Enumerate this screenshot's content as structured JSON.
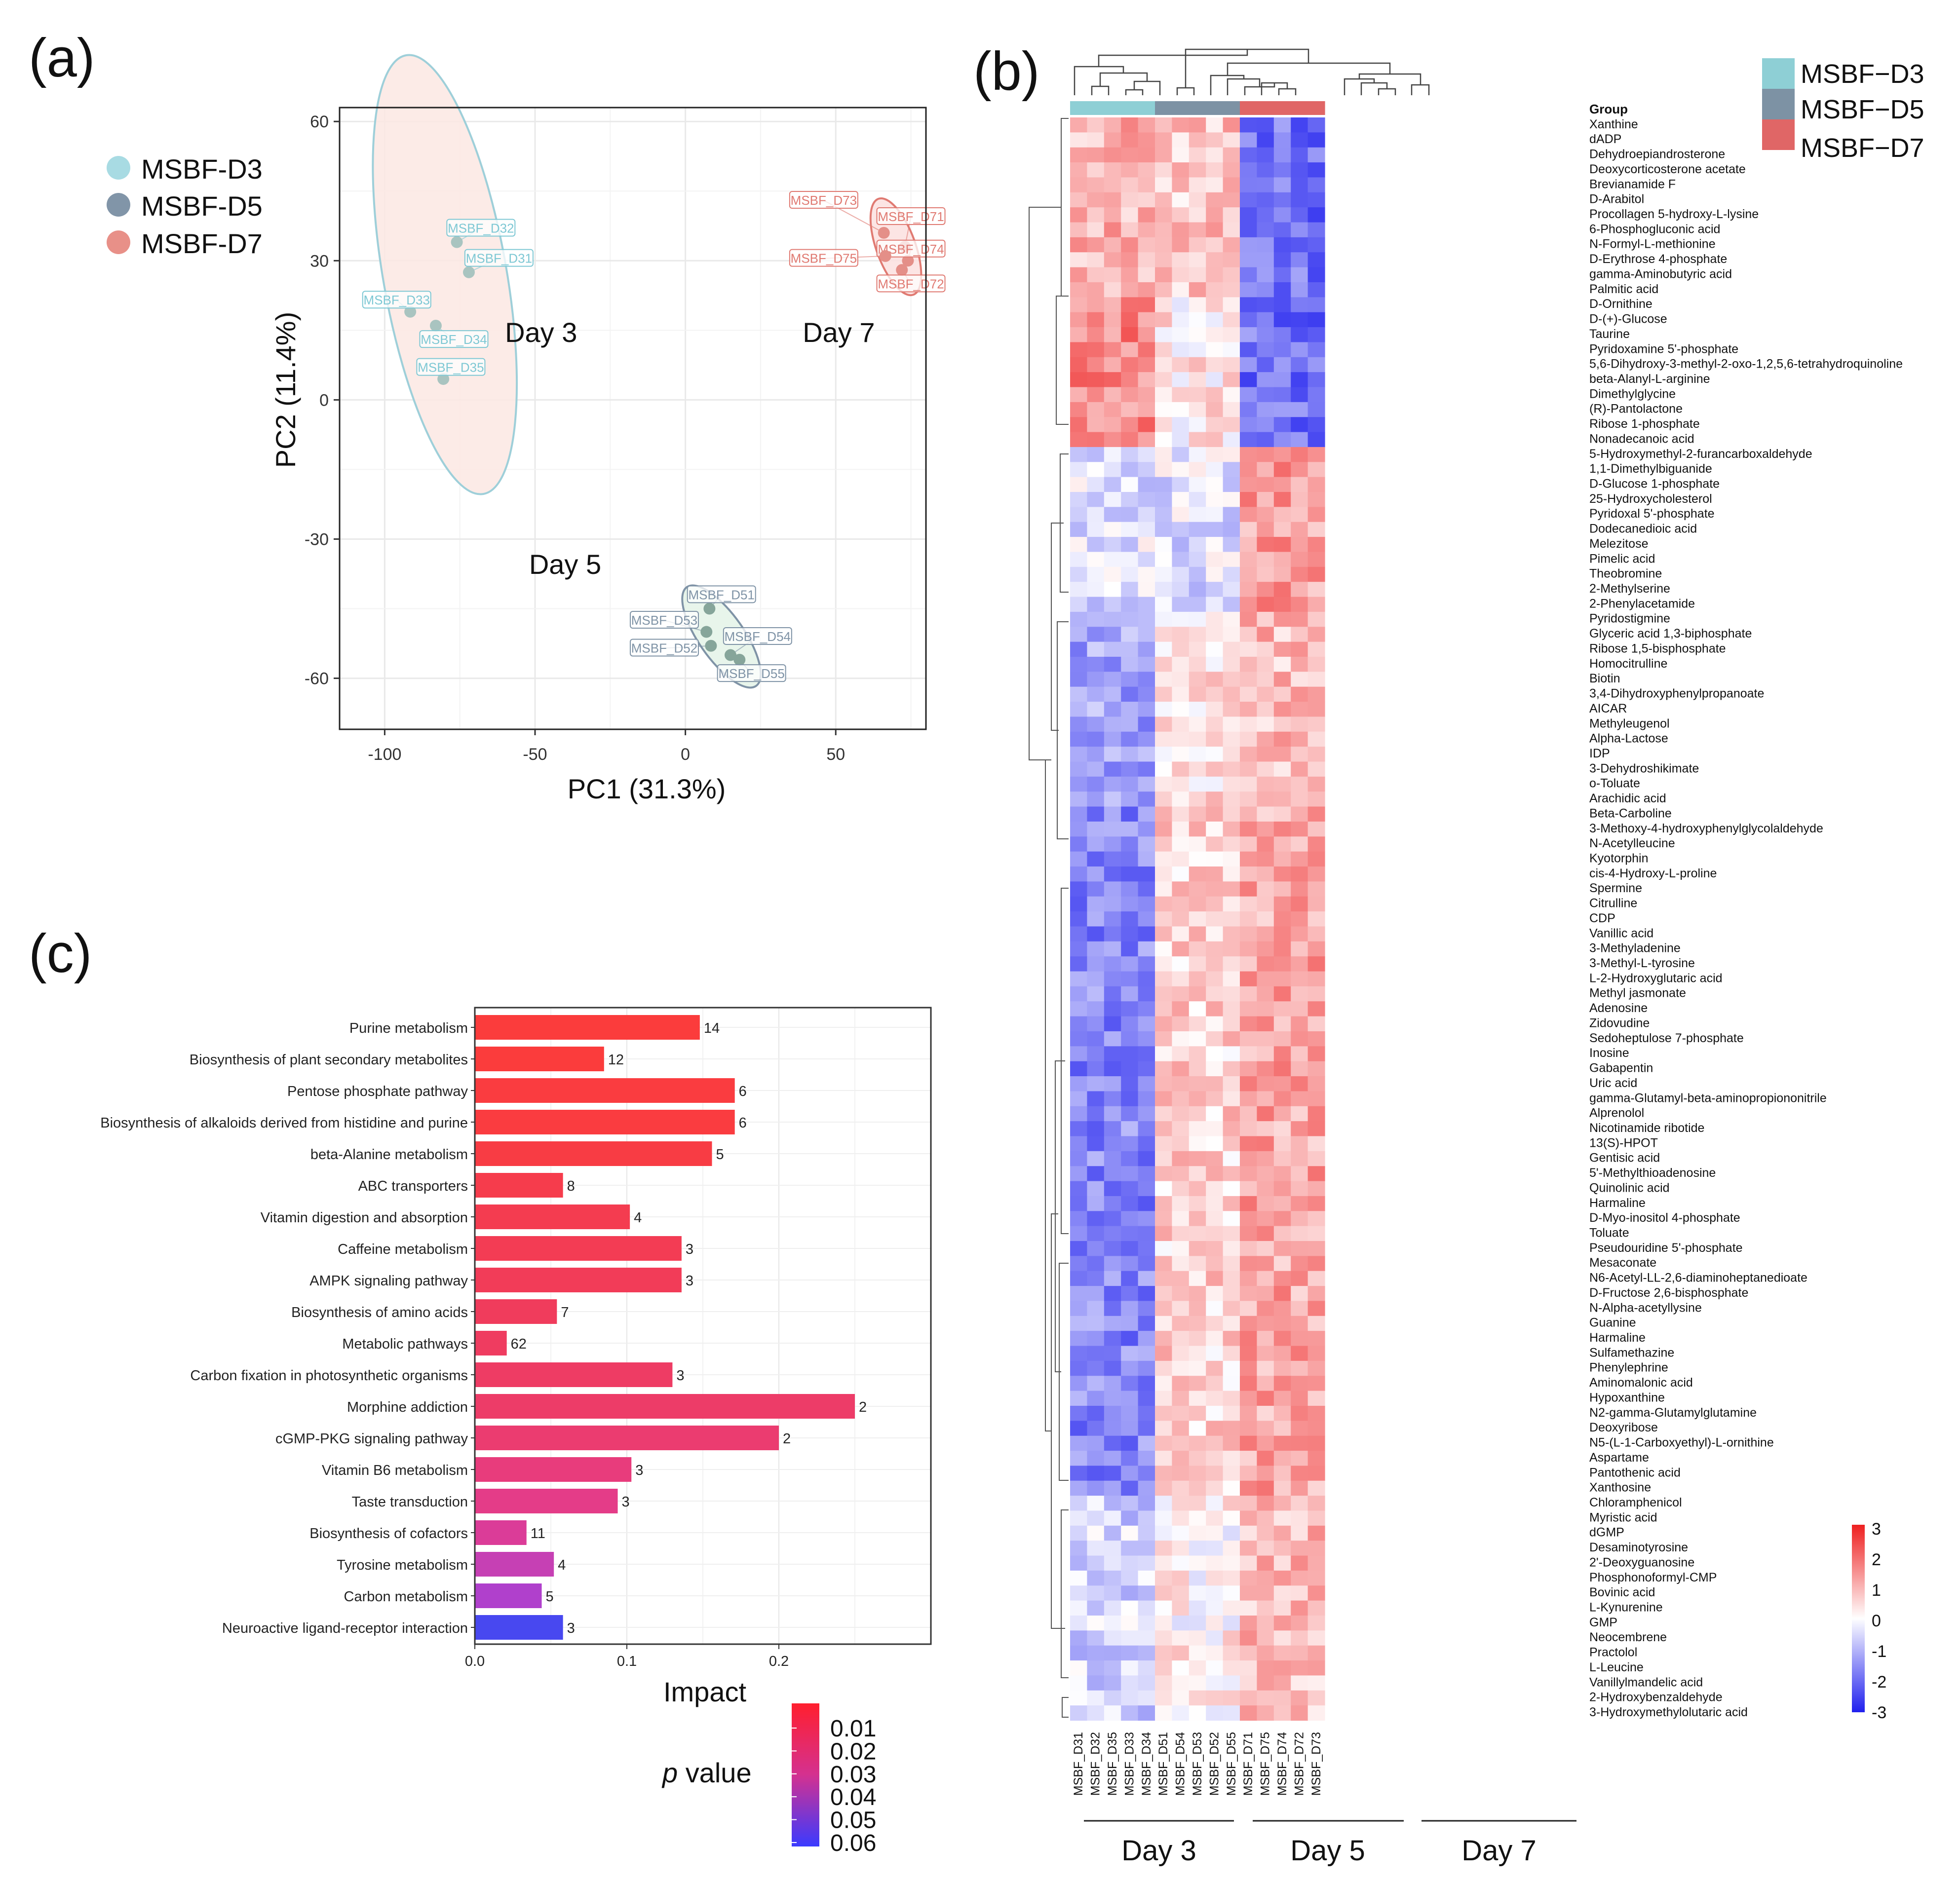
{
  "panel_labels": {
    "a": "(a)",
    "b": "(b)",
    "c": "(c)"
  },
  "chart_data": [
    {
      "panel": "(a)",
      "type": "scatter",
      "title": "",
      "xlabel": "PC1 (31.3%)",
      "ylabel": "PC2 (11.4%)",
      "xlim": [
        -115,
        80
      ],
      "ylim": [
        -71,
        63
      ],
      "xticks": [
        -100,
        -50,
        0,
        50
      ],
      "yticks": [
        60,
        30,
        0,
        -30,
        -60
      ],
      "xtick_labels": [
        "-100",
        "-50",
        "0",
        "50"
      ],
      "ytick_labels": [
        "60",
        "30",
        "0",
        "-30",
        "-60"
      ],
      "grid": true,
      "legend": [
        {
          "name": "MSBF-D3",
          "color": "#a8dbe3"
        },
        {
          "name": "MSBF-D5",
          "color": "#8195a8"
        },
        {
          "name": "MSBF-D7",
          "color": "#e89088"
        }
      ],
      "groups": [
        {
          "group": "MSBF-D3",
          "point_color": "#a9c4c0",
          "label_color": "#7ec8d4",
          "ellipse_fill": "#fbe7e3",
          "ellipse_stroke": "#9ecfd9",
          "ellipse": {
            "cx": -80,
            "cy": 27,
            "rx": 20.5,
            "ry": 48,
            "angle": -10
          },
          "points": [
            {
              "name": "MSBF_D32",
              "x": -76,
              "y": 34,
              "lx": -68,
              "ly": 37
            },
            {
              "name": "MSBF_D31",
              "x": -72,
              "y": 27.5,
              "lx": -62,
              "ly": 30.5
            },
            {
              "name": "MSBF_D33",
              "x": -91.5,
              "y": 19,
              "lx": -96,
              "ly": 21.5
            },
            {
              "name": "MSBF_D34",
              "x": -83,
              "y": 16,
              "lx": -77,
              "ly": 13
            },
            {
              "name": "MSBF_D35",
              "x": -80.5,
              "y": 4.5,
              "lx": -78,
              "ly": 7
            }
          ]
        },
        {
          "group": "MSBF-D5",
          "point_color": "#86a59a",
          "label_color": "#7f93a6",
          "ellipse_fill": "#e4f3e7",
          "ellipse_stroke": "#7f93a6",
          "ellipse": {
            "cx": 12,
            "cy": -51,
            "rx": 7.5,
            "ry": 13,
            "angle": -35
          },
          "points": [
            {
              "name": "MSBF_D51",
              "x": 8,
              "y": -45,
              "lx": 12,
              "ly": -42
            },
            {
              "name": "MSBF_D53",
              "x": 7,
              "y": -50,
              "lx": -7,
              "ly": -47.5
            },
            {
              "name": "MSBF_D52",
              "x": 8.5,
              "y": -53,
              "lx": -7,
              "ly": -53.5
            },
            {
              "name": "MSBF_D54",
              "x": 15,
              "y": -55,
              "lx": 24,
              "ly": -51
            },
            {
              "name": "MSBF_D55",
              "x": 18,
              "y": -56,
              "lx": 22,
              "ly": -59
            }
          ]
        },
        {
          "group": "MSBF-D7",
          "point_color": "#e48f88",
          "label_color": "#e07a72",
          "ellipse_fill": "#fbe1df",
          "ellipse_stroke": "#e07a72",
          "ellipse": {
            "cx": 70,
            "cy": 33,
            "rx": 6.5,
            "ry": 11,
            "angle": -20
          },
          "points": [
            {
              "name": "MSBF_D73",
              "x": 66,
              "y": 36,
              "lx": 46,
              "ly": 43
            },
            {
              "name": "MSBF_D71",
              "x": 73,
              "y": 33,
              "lx": 75,
              "ly": 39.5
            },
            {
              "name": "MSBF_D74",
              "x": 74,
              "y": 30,
              "lx": 75,
              "ly": 32.5
            },
            {
              "name": "MSBF_D75",
              "x": 66.5,
              "y": 31,
              "lx": 46,
              "ly": 30.5
            },
            {
              "name": "MSBF_D72",
              "x": 72,
              "y": 28,
              "lx": 75,
              "ly": 25
            }
          ]
        }
      ],
      "annotations": [
        {
          "text": "Day 3",
          "x": -60,
          "y": 12.5
        },
        {
          "text": "Day 7",
          "x": 39,
          "y": 12.5
        },
        {
          "text": "Day 5",
          "x": -52,
          "y": -37.5
        }
      ]
    },
    {
      "panel": "(b)",
      "type": "heatmap",
      "title": "",
      "group_header": "Group",
      "legend": [
        {
          "name": "MSBF−D3",
          "color": "#8ecfd5"
        },
        {
          "name": "MSBF−D5",
          "color": "#7d92a4"
        },
        {
          "name": "MSBF−D7",
          "color": "#e06666"
        }
      ],
      "columns": [
        "MSBF_D31",
        "MSBF_D32",
        "MSBF_D35",
        "MSBF_D33",
        "MSBF_D34",
        "MSBF_D51",
        "MSBF_D54",
        "MSBF_D53",
        "MSBF_D52",
        "MSBF_D55",
        "MSBF_D71",
        "MSBF_D75",
        "MSBF_D74",
        "MSBF_D72",
        "MSBF_D73"
      ],
      "column_groups": [
        "MSBF-D3",
        "MSBF-D3",
        "MSBF-D3",
        "MSBF-D3",
        "MSBF-D3",
        "MSBF-D5",
        "MSBF-D5",
        "MSBF-D5",
        "MSBF-D5",
        "MSBF-D5",
        "MSBF-D7",
        "MSBF-D7",
        "MSBF-D7",
        "MSBF-D7",
        "MSBF-D7"
      ],
      "group_labels": [
        "Day 3",
        "Day 5",
        "Day 7"
      ],
      "color_scale": {
        "min": -3,
        "max": 3,
        "low": "#2020ee",
        "mid": "#ffffff",
        "high": "#ee2020"
      },
      "colorbar_ticks": [
        "3",
        "2",
        "1",
        "0",
        "-1",
        "-2",
        "-3"
      ],
      "rows": [
        "Xanthine",
        "dADP",
        "Dehydroepiandrosterone",
        "Deoxycorticosterone acetate",
        "Brevianamide F",
        "D-Arabitol",
        "Procollagen 5-hydroxy-L-lysine",
        "6-Phosphogluconic acid",
        "N-Formyl-L-methionine",
        "D-Erythrose 4-phosphate",
        "gamma-Aminobutyric acid",
        "Palmitic acid",
        "D-Ornithine",
        "D-(+)-Glucose",
        "Taurine",
        "Pyridoxamine 5'-phosphate",
        "5,6-Dihydroxy-3-methyl-2-oxo-1,2,5,6-tetrahydroquinoline",
        "beta-Alanyl-L-arginine",
        "Dimethylglycine",
        "(R)-Pantolactone",
        "Ribose 1-phosphate",
        "Nonadecanoic acid",
        "5-Hydroxymethyl-2-furancarboxaldehyde",
        "1,1-Dimethylbiguanide",
        "D-Glucose 1-phosphate",
        "25-Hydroxycholesterol",
        "Pyridoxal 5'-phosphate",
        "Dodecanedioic acid",
        "Melezitose",
        "Pimelic acid",
        "Theobromine",
        "2-Methylserine",
        "2-Phenylacetamide",
        "Pyridostigmine",
        "Glyceric acid 1,3-biphosphate",
        "Ribose 1,5-bisphosphate",
        "Homocitrulline",
        "Biotin",
        "3,4-Dihydroxyphenylpropanoate",
        "AICAR",
        "Methyleugenol",
        "Alpha-Lactose",
        "IDP",
        "3-Dehydroshikimate",
        "o-Toluate",
        "Arachidic acid",
        "Beta-Carboline",
        "3-Methoxy-4-hydroxyphenylglycolaldehyde",
        "N-Acetylleucine",
        "Kyotorphin",
        "cis-4-Hydroxy-L-proline",
        "Spermine",
        "Citrulline",
        "CDP",
        "Vanillic acid",
        "3-Methyladenine",
        "3-Methyl-L-tyrosine",
        "L-2-Hydroxyglutaric acid",
        "Methyl jasmonate",
        "Adenosine",
        "Zidovudine",
        "Sedoheptulose 7-phosphate",
        "Inosine",
        "Gabapentin",
        "Uric acid",
        "gamma-Glutamyl-beta-aminopropiononitrile",
        "Alprenolol",
        "Nicotinamide ribotide",
        "13(S)-HPOT",
        "Gentisic acid",
        "5'-Methylthioadenosine",
        "Quinolinic acid",
        "Harmaline",
        "D-Myo-inositol 4-phosphate",
        "Toluate",
        "Pseudouridine 5'-phosphate",
        "Mesaconate",
        "N6-Acetyl-LL-2,6-diaminoheptanedioate",
        "D-Fructose 2,6-bisphosphate",
        "N-Alpha-acetyllysine",
        "Guanine",
        "Harmaline",
        "Sulfamethazine",
        "Phenylephrine",
        "Aminomalonic acid",
        "Hypoxanthine",
        "N2-gamma-Glutamylglutamine",
        "Deoxyribose",
        "N5-(L-1-Carboxyethyl)-L-ornithine",
        "Aspartame",
        "Pantothenic acid",
        "Xanthosine",
        "Chloramphenicol",
        "Myristic acid",
        "dGMP",
        "Desaminotyrosine",
        "2'-Deoxyguanosine",
        "Phosphonoformyl-CMP",
        "Bovinic acid",
        "L-Kynurenine",
        "GMP",
        "Neocembrene",
        "Practolol",
        "L-Leucine",
        "Vanillylmandelic acid",
        "2-Hydroxybenzaldehyde",
        "3-Hydroxymethylolutaric acid"
      ]
    },
    {
      "panel": "(c)",
      "type": "bar",
      "orientation": "horizontal",
      "title": "",
      "xlabel": "Impact",
      "xlim": [
        0,
        0.3
      ],
      "xticks": [
        "0.0",
        "0.1",
        "0.2"
      ],
      "categories": [
        "Purine metabolism",
        "Biosynthesis of plant secondary metabolites",
        "Pentose phosphate pathway",
        "Biosynthesis of alkaloids derived from histidine and purine",
        "beta-Alanine metabolism",
        "ABC transporters",
        "Vitamin digestion and absorption",
        "Caffeine metabolism",
        "AMPK signaling pathway",
        "Biosynthesis of amino acids",
        "Metabolic pathways",
        "Carbon fixation in photosynthetic organisms",
        "Morphine addiction",
        "cGMP-PKG signaling pathway",
        "Vitamin B6 metabolism",
        "Taste transduction",
        "Biosynthesis of cofactors",
        "Tyrosine metabolism",
        "Carbon metabolism",
        "Neuroactive ligand-receptor interaction"
      ],
      "values": [
        0.148,
        0.085,
        0.171,
        0.171,
        0.156,
        0.058,
        0.102,
        0.136,
        0.136,
        0.054,
        0.021,
        0.13,
        0.25,
        0.2,
        0.103,
        0.094,
        0.034,
        0.052,
        0.044,
        0.058
      ],
      "counts": [
        "14",
        "12",
        "6",
        "6",
        "5",
        "8",
        "4",
        "3",
        "3",
        "7",
        "62",
        "3",
        "2",
        "2",
        "3",
        "3",
        "11",
        "4",
        "5",
        "3"
      ],
      "colors": [
        "#fb3c3c",
        "#fb3c3c",
        "#fa3c40",
        "#fa3c40",
        "#f83c44",
        "#f63c4c",
        "#f43c50",
        "#f33c54",
        "#f23c58",
        "#f03c5c",
        "#ef3c60",
        "#ee3c64",
        "#ed3c68",
        "#eb3c70",
        "#e83c7c",
        "#e43c88",
        "#db3c98",
        "#c640b4",
        "#b040cc",
        "#4848f0"
      ],
      "pvalue_legend": {
        "title_p": "p",
        "title_rest": " value",
        "ticks": [
          "0.01",
          "0.02",
          "0.03",
          "0.04",
          "0.05",
          "0.06"
        ],
        "high": "#ff1f2e",
        "low": "#3a3aff"
      }
    }
  ]
}
